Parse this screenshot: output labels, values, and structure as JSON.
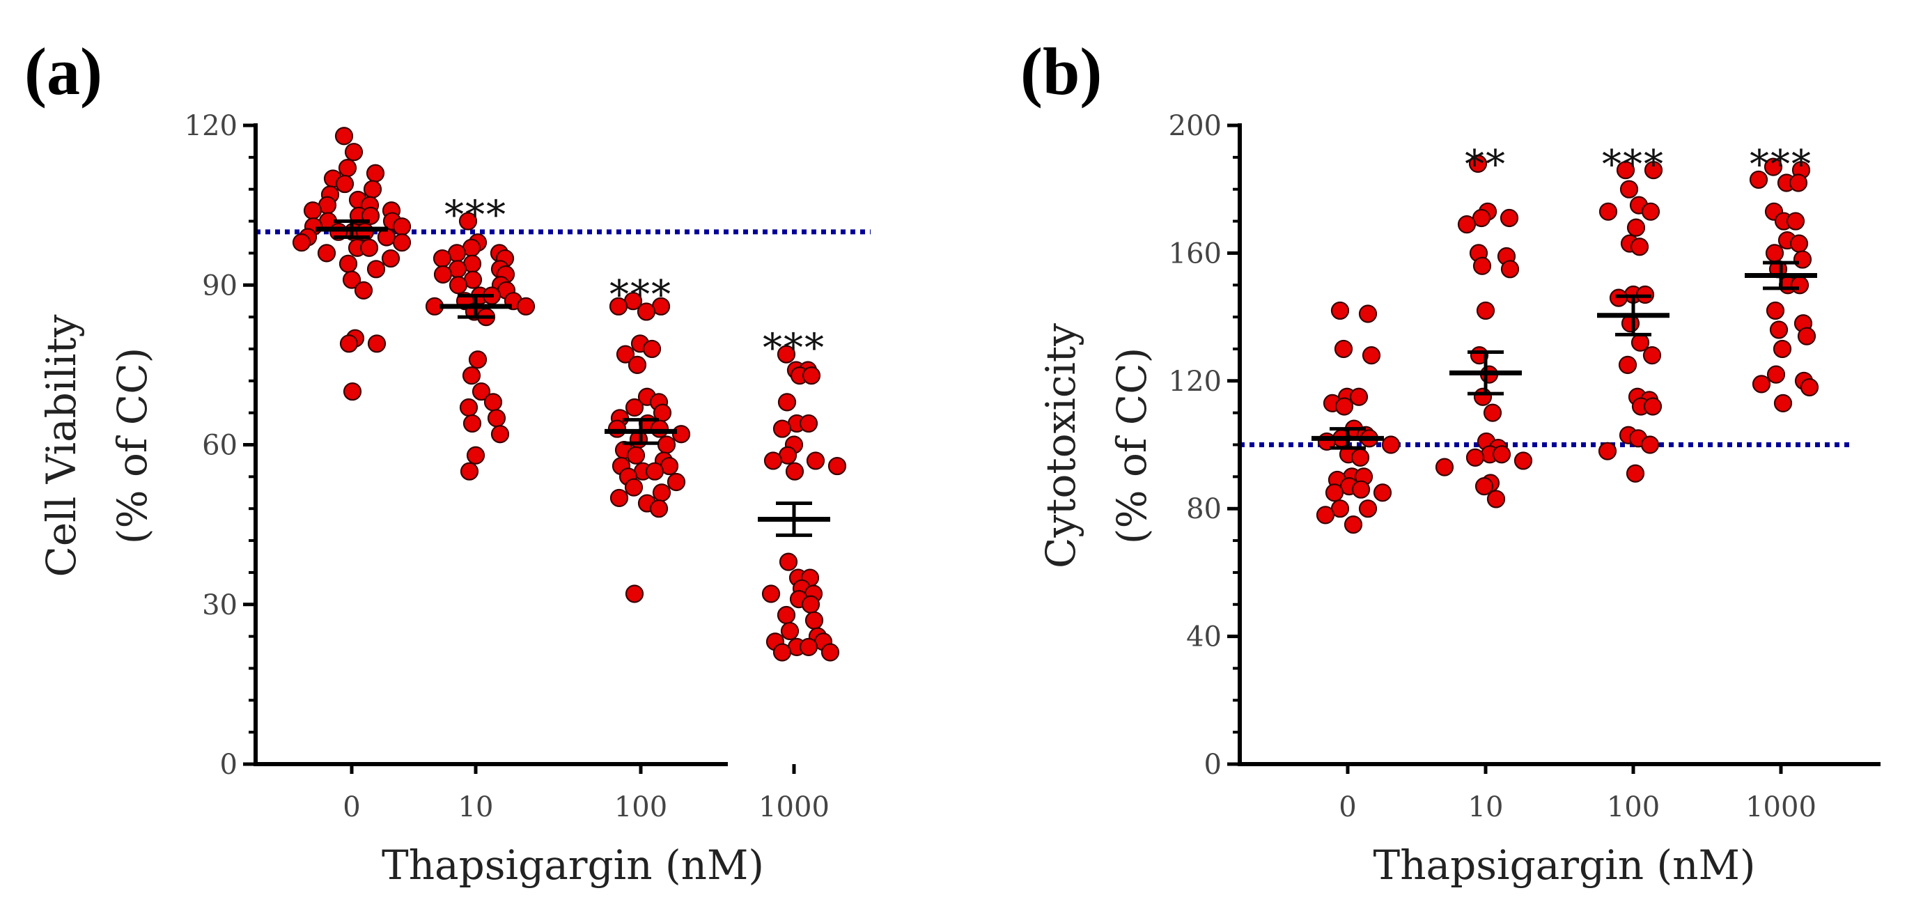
{
  "chart_data": [
    {
      "type": "scatter",
      "panel_label": "(a)",
      "title": "",
      "xlabel": "Thapsigargin (nM)",
      "ylabel_line1": "Cell Viability",
      "ylabel_line2": "(% of CC)",
      "ylim": [
        0,
        120
      ],
      "yticks": [
        0,
        30,
        60,
        90,
        120
      ],
      "y_minor_step": 6,
      "categories": [
        "0",
        "10",
        "100",
        "1000"
      ],
      "reference_line": 100,
      "colors": {
        "points": "#e60000",
        "point_outline": "#3a0000",
        "mean_bar": "#000000",
        "reference_line": "#000099"
      },
      "means": [
        100.5,
        86,
        62.5,
        46
      ],
      "sem": [
        1.5,
        2,
        2.2,
        3
      ],
      "significance": [
        "",
        "***",
        "***",
        "***"
      ],
      "series": [
        {
          "name": "0",
          "values": [
            118,
            115,
            112,
            111,
            110,
            109,
            108,
            107,
            106,
            105,
            105,
            104,
            104,
            103,
            103,
            102,
            102,
            101,
            101,
            100,
            100,
            100,
            99,
            99,
            98,
            98,
            97,
            97,
            96,
            95,
            94,
            93,
            91,
            89,
            80,
            79,
            79,
            70
          ]
        },
        {
          "name": "10",
          "values": [
            102,
            98,
            97,
            96,
            96,
            95,
            95,
            94,
            93,
            93,
            92,
            92,
            91,
            90,
            90,
            89,
            88,
            88,
            87,
            87,
            86,
            86,
            85,
            84,
            76,
            73,
            70,
            68,
            67,
            65,
            64,
            62,
            58,
            55
          ]
        },
        {
          "name": "100",
          "values": [
            87,
            86,
            86,
            85,
            79,
            78,
            77,
            75,
            69,
            68,
            67,
            66,
            65,
            64,
            63,
            63,
            62,
            61,
            60,
            59,
            58,
            57,
            56,
            56,
            55,
            55,
            54,
            53,
            52,
            51,
            50,
            49,
            48,
            32
          ]
        },
        {
          "name": "1000",
          "values": [
            77,
            74,
            74,
            73,
            73,
            68,
            64,
            64,
            63,
            60,
            58,
            57,
            57,
            56,
            55,
            38,
            35,
            35,
            33,
            32,
            32,
            31,
            30,
            28,
            27,
            25,
            24,
            23,
            23,
            22,
            22,
            21,
            21
          ]
        }
      ]
    },
    {
      "type": "scatter",
      "panel_label": "(b)",
      "title": "",
      "xlabel": "Thapsigargin (nM)",
      "ylabel_line1": "Cytotoxicity",
      "ylabel_line2": "(% of CC)",
      "ylim": [
        0,
        200
      ],
      "yticks": [
        0,
        40,
        80,
        120,
        160,
        200
      ],
      "y_minor_step": 10,
      "categories": [
        "0",
        "10",
        "100",
        "1000"
      ],
      "reference_line": 100,
      "colors": {
        "points": "#e60000",
        "point_outline": "#3a0000",
        "mean_bar": "#000000",
        "reference_line": "#000099"
      },
      "means": [
        102,
        122.5,
        140.5,
        153
      ],
      "sem": [
        3,
        6.5,
        6,
        4
      ],
      "significance": [
        "",
        "**",
        "***",
        "***"
      ],
      "series": [
        {
          "name": "0",
          "values": [
            142,
            141,
            130,
            128,
            115,
            115,
            113,
            112,
            105,
            103,
            102,
            102,
            101,
            100,
            97,
            96,
            90,
            90,
            89,
            87,
            86,
            85,
            85,
            80,
            80,
            78,
            75
          ]
        },
        {
          "name": "10",
          "values": [
            188,
            173,
            171,
            171,
            169,
            160,
            159,
            156,
            155,
            142,
            128,
            122,
            115,
            110,
            101,
            99,
            97,
            97,
            96,
            95,
            93,
            88,
            87,
            83
          ]
        },
        {
          "name": "100",
          "values": [
            186,
            186,
            180,
            175,
            173,
            173,
            168,
            163,
            162,
            147,
            147,
            146,
            138,
            132,
            128,
            125,
            115,
            114,
            112,
            112,
            103,
            102,
            100,
            98,
            91
          ]
        },
        {
          "name": "1000",
          "values": [
            187,
            186,
            183,
            182,
            182,
            173,
            170,
            170,
            164,
            163,
            160,
            158,
            155,
            150,
            150,
            142,
            138,
            136,
            134,
            130,
            122,
            120,
            119,
            118,
            113
          ]
        }
      ]
    }
  ]
}
